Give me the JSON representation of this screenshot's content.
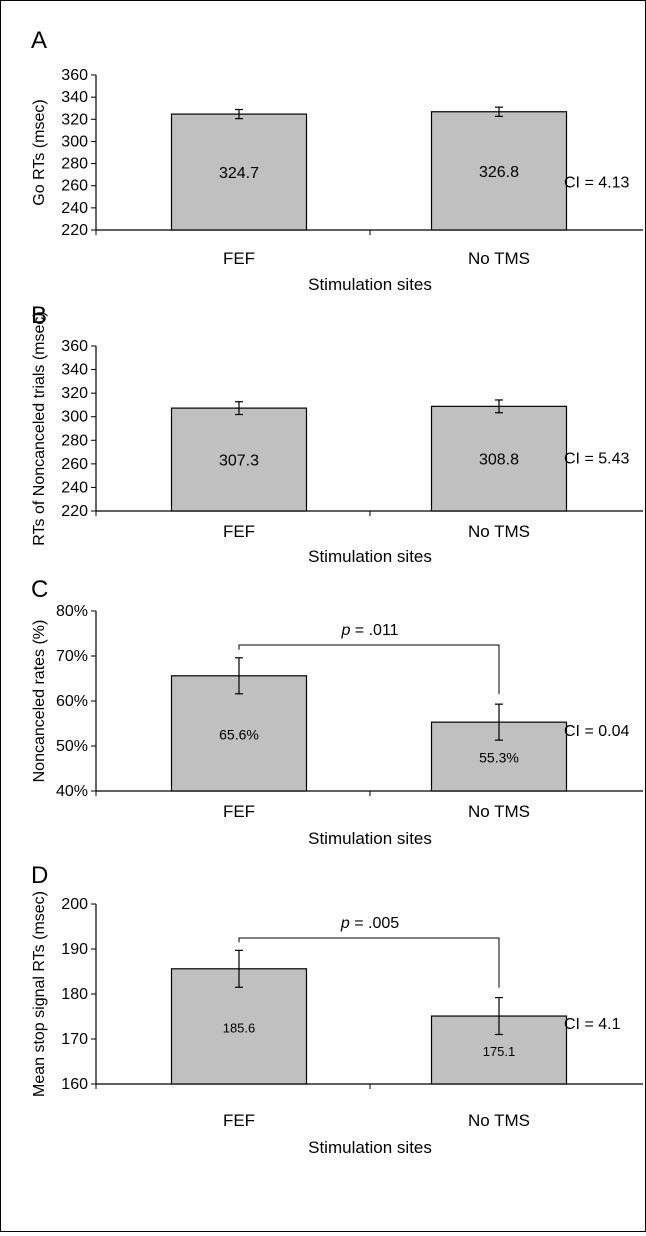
{
  "chart_data": [
    {
      "panel": "A",
      "type": "bar",
      "ylabel": "Go RTs (msec)",
      "xlabel": "Stimulation sites",
      "categories": [
        "FEF",
        "No TMS"
      ],
      "values": [
        324.7,
        326.8
      ],
      "value_labels": [
        "324.7",
        "326.8"
      ],
      "error": [
        4.13,
        4.13
      ],
      "ylim": [
        220,
        360
      ],
      "yticks": [
        220,
        240,
        260,
        280,
        300,
        320,
        340,
        360
      ],
      "ytick_labels": [
        "220",
        "240",
        "260",
        "280",
        "300",
        "320",
        "340",
        "360"
      ],
      "ci_label": "CI = 4.13",
      "bar_color": "#c0c0c0"
    },
    {
      "panel": "B",
      "type": "bar",
      "ylabel": "RTs of Noncanceled trials (msec)",
      "xlabel": "Stimulation sites",
      "categories": [
        "FEF",
        "No TMS"
      ],
      "values": [
        307.3,
        308.8
      ],
      "value_labels": [
        "307.3",
        "308.8"
      ],
      "error": [
        5.43,
        5.43
      ],
      "ylim": [
        220,
        360
      ],
      "yticks": [
        220,
        240,
        260,
        280,
        300,
        320,
        340,
        360
      ],
      "ytick_labels": [
        "220",
        "240",
        "260",
        "280",
        "300",
        "320",
        "340",
        "360"
      ],
      "ci_label": "CI = 5.43",
      "bar_color": "#c0c0c0"
    },
    {
      "panel": "C",
      "type": "bar",
      "ylabel": "Noncanceled rates (%)",
      "xlabel": "Stimulation sites",
      "categories": [
        "FEF",
        "No TMS"
      ],
      "values": [
        65.6,
        55.3
      ],
      "value_labels": [
        "65.6%",
        "55.3%"
      ],
      "error": [
        4,
        4
      ],
      "ylim": [
        40,
        80
      ],
      "yticks": [
        40,
        50,
        60,
        70,
        80
      ],
      "ytick_labels": [
        "40%",
        "50%",
        "60%",
        "70%",
        "80%"
      ],
      "ci_label": "CI = 0.04",
      "annotation": {
        "p_label": "p",
        "p_value": " = .011"
      },
      "bar_color": "#c0c0c0"
    },
    {
      "panel": "D",
      "type": "bar",
      "ylabel": "Mean stop signal RTs (msec)",
      "xlabel": "Stimulation sites",
      "categories": [
        "FEF",
        "No TMS"
      ],
      "values": [
        185.6,
        175.1
      ],
      "value_labels": [
        "185.6",
        "175.1"
      ],
      "error": [
        4.1,
        4.1
      ],
      "ylim": [
        160,
        200
      ],
      "yticks": [
        160,
        170,
        180,
        190,
        200
      ],
      "ytick_labels": [
        "160",
        "170",
        "180",
        "190",
        "200"
      ],
      "ci_label": "CI = 4.1",
      "annotation": {
        "p_label": "p",
        "p_value": " = .005"
      },
      "bar_color": "#c0c0c0"
    }
  ]
}
